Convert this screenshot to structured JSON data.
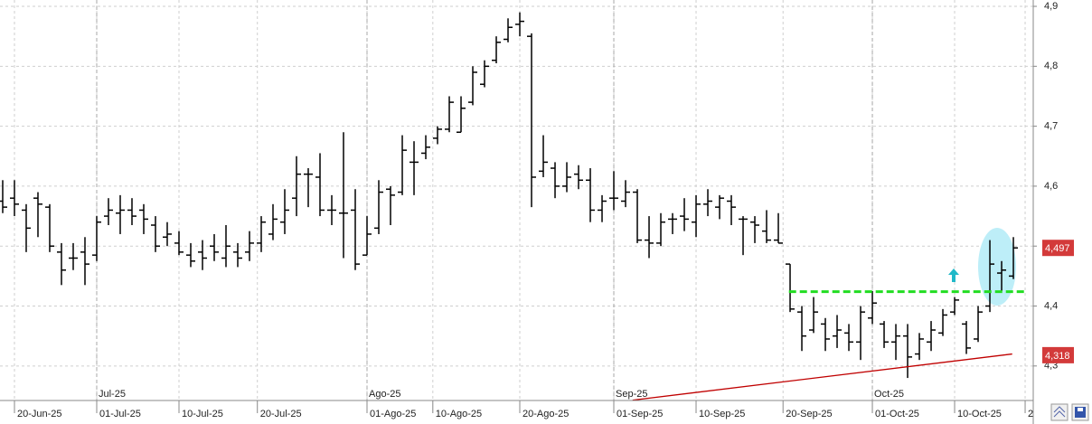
{
  "chart_data": {
    "type": "ohlc",
    "series": {
      "color": "#000000",
      "open": [
        4.575,
        4.58,
        4.56,
        4.58,
        4.565,
        4.49,
        4.48,
        4.49,
        4.485,
        4.55,
        4.555,
        4.56,
        4.56,
        4.535,
        4.515,
        4.505,
        4.485,
        4.49,
        4.5,
        4.48,
        4.49,
        4.49,
        4.505,
        4.52,
        4.54,
        4.58,
        4.62,
        4.615,
        4.56,
        4.555,
        4.56,
        4.485,
        4.53,
        4.595,
        4.59,
        4.64,
        4.655,
        4.68,
        4.695,
        4.69,
        4.74,
        4.77,
        4.81,
        4.845,
        4.87,
        4.85,
        4.625,
        4.63,
        4.6,
        4.62,
        4.61,
        4.56,
        4.58,
        4.575,
        4.59,
        4.51,
        4.505,
        4.545,
        4.55,
        4.54,
        4.57,
        4.565,
        4.575,
        4.545,
        4.54,
        4.525,
        4.51,
        4.47,
        4.39,
        4.36,
        4.37,
        4.35,
        4.355,
        4.34,
        4.38,
        4.37,
        4.34,
        4.35,
        4.32,
        4.34,
        4.355,
        4.39,
        4.37,
        4.345,
        4.4,
        4.455,
        4.45
      ],
      "high": [
        4.61,
        4.61,
        4.57,
        4.59,
        4.57,
        4.505,
        4.505,
        4.515,
        4.55,
        4.58,
        4.585,
        4.58,
        4.57,
        4.55,
        4.54,
        4.525,
        4.505,
        4.51,
        4.52,
        4.535,
        4.505,
        4.525,
        4.55,
        4.57,
        4.595,
        4.65,
        4.63,
        4.655,
        4.585,
        4.69,
        4.595,
        4.55,
        4.61,
        4.6,
        4.685,
        4.675,
        4.685,
        4.7,
        4.75,
        4.75,
        4.8,
        4.81,
        4.85,
        4.88,
        4.89,
        4.855,
        4.685,
        4.64,
        4.64,
        4.635,
        4.63,
        4.585,
        4.625,
        4.61,
        4.595,
        4.55,
        4.555,
        4.555,
        4.58,
        4.585,
        4.595,
        4.585,
        4.585,
        4.55,
        4.55,
        4.56,
        4.555,
        4.47,
        4.4,
        4.415,
        4.38,
        4.385,
        4.37,
        4.4,
        4.425,
        4.375,
        4.37,
        4.37,
        4.355,
        4.375,
        4.395,
        4.415,
        4.375,
        4.4,
        4.51,
        4.475,
        4.515
      ],
      "low": [
        4.555,
        4.55,
        4.49,
        4.515,
        4.49,
        4.435,
        4.46,
        4.435,
        4.475,
        4.535,
        4.52,
        4.535,
        4.52,
        4.49,
        4.5,
        4.485,
        4.465,
        4.46,
        4.475,
        4.465,
        4.465,
        4.475,
        4.49,
        4.51,
        4.52,
        4.55,
        4.565,
        4.55,
        4.535,
        4.48,
        4.46,
        4.485,
        4.52,
        4.535,
        4.585,
        4.585,
        4.645,
        4.67,
        4.69,
        4.69,
        4.735,
        4.765,
        4.805,
        4.84,
        4.85,
        4.565,
        4.615,
        4.58,
        4.59,
        4.595,
        4.54,
        4.54,
        4.56,
        4.565,
        4.505,
        4.48,
        4.5,
        4.52,
        4.525,
        4.515,
        4.55,
        4.545,
        4.535,
        4.485,
        4.505,
        4.505,
        4.505,
        4.39,
        4.325,
        4.355,
        4.325,
        4.33,
        4.325,
        4.31,
        4.37,
        4.33,
        4.31,
        4.28,
        4.31,
        4.325,
        4.35,
        4.385,
        4.32,
        4.34,
        4.39,
        4.425,
        4.445
      ],
      "close": [
        4.565,
        4.57,
        4.53,
        4.57,
        4.5,
        4.46,
        4.48,
        4.47,
        4.54,
        4.56,
        4.56,
        4.55,
        4.545,
        4.5,
        4.52,
        4.49,
        4.475,
        4.48,
        4.49,
        4.5,
        4.48,
        4.505,
        4.54,
        4.545,
        4.56,
        4.62,
        4.62,
        4.56,
        4.56,
        4.555,
        4.47,
        4.52,
        4.59,
        4.585,
        4.66,
        4.64,
        4.665,
        4.695,
        4.74,
        4.73,
        4.79,
        4.8,
        4.84,
        4.865,
        4.875,
        4.615,
        4.64,
        4.6,
        4.615,
        4.61,
        4.56,
        4.575,
        4.58,
        4.59,
        4.51,
        4.505,
        4.54,
        4.545,
        4.545,
        4.57,
        4.575,
        4.58,
        4.565,
        4.545,
        4.535,
        4.51,
        4.505,
        4.395,
        4.35,
        4.39,
        4.345,
        4.36,
        4.34,
        4.39,
        4.405,
        4.34,
        4.35,
        4.315,
        4.345,
        4.36,
        4.385,
        4.41,
        4.33,
        4.39,
        4.47,
        4.46,
        4.497
      ]
    },
    "xlim": [
      -0.23,
      87.69
    ],
    "xticks": [
      {
        "value": 1,
        "label": "20-Jun-25"
      },
      {
        "value": 8,
        "label": "01-Jul-25"
      },
      {
        "value": 15,
        "label": "10-Jul-25"
      },
      {
        "value": 21.67,
        "label": "20-Jul-25"
      },
      {
        "value": 31,
        "label": "01-Ago-25"
      },
      {
        "value": 36.6,
        "label": "10-Ago-25"
      },
      {
        "value": 44,
        "label": "20-Ago-25"
      },
      {
        "value": 52,
        "label": "01-Sep-25"
      },
      {
        "value": 59,
        "label": "10-Sep-25"
      },
      {
        "value": 66.4,
        "label": "20-Sep-25"
      },
      {
        "value": 74,
        "label": "01-Oct-25"
      },
      {
        "value": 81,
        "label": "10-Oct-25"
      },
      {
        "value": 87,
        "label": "2"
      }
    ],
    "month_ticks": [
      {
        "value": 8,
        "label": "Jul-25"
      },
      {
        "value": 31,
        "label": "Ago-25"
      },
      {
        "value": 52,
        "label": "Sep-25"
      },
      {
        "value": 74,
        "label": "Oct-25"
      }
    ],
    "ylim": [
      4.2424,
      4.9106
    ],
    "yticks": [
      {
        "value": 4.3,
        "label": "4,3"
      },
      {
        "value": 4.4,
        "label": "4,4"
      },
      {
        "value": 4.5,
        "label": "4,5"
      },
      {
        "value": 4.6,
        "label": "4,6"
      },
      {
        "value": 4.7,
        "label": "4,7"
      },
      {
        "value": 4.8,
        "label": "4,8"
      },
      {
        "value": 4.9,
        "label": "4,9"
      }
    ],
    "grid": true,
    "price_tags": [
      {
        "value": 4.497,
        "label": "4,497"
      },
      {
        "value": 4.318,
        "label": "4,318"
      }
    ],
    "trendline": {
      "x": [
        53.6,
        85.9
      ],
      "y": [
        4.243,
        4.32
      ],
      "color": "#c00000"
    },
    "level_line": {
      "x": [
        66.9,
        86.9
      ],
      "value": 4.424,
      "color": "#22dd22"
    }
  }
}
